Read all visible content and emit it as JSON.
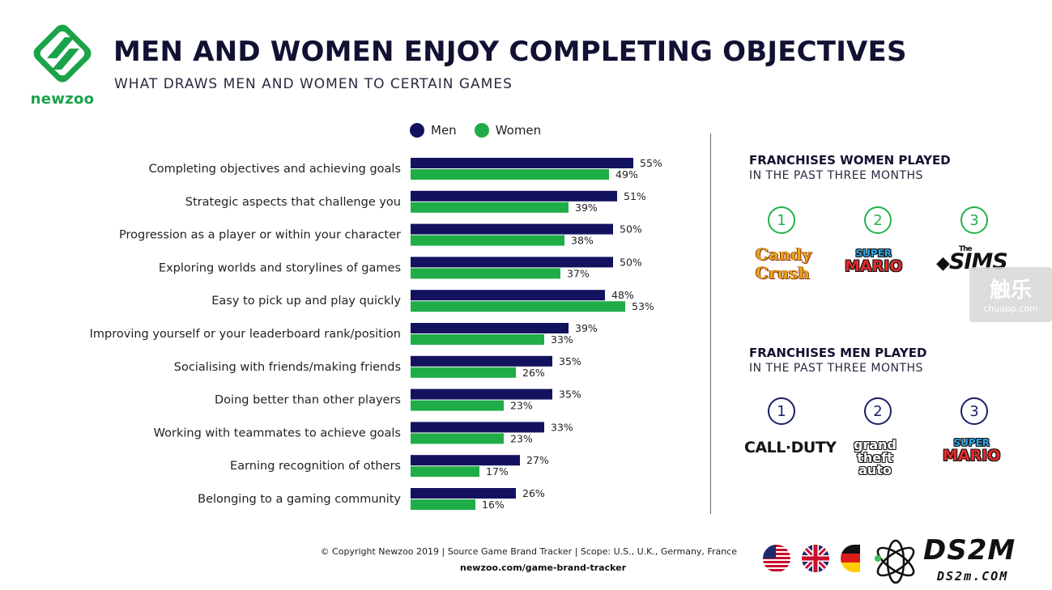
{
  "header": {
    "logo_text": "newzoo",
    "title": "MEN AND WOMEN ENJOY COMPLETING OBJECTIVES",
    "subtitle": "WHAT DRAWS MEN AND WOMEN TO CERTAIN GAMES"
  },
  "colors": {
    "men": "#12125e",
    "women": "#1fad48"
  },
  "chart_data": {
    "type": "bar",
    "orientation": "horizontal",
    "legend_placement": "top",
    "grid": false,
    "xlim": [
      0,
      60
    ],
    "categories": [
      "Completing objectives and achieving goals",
      "Strategic aspects that challenge you",
      "Progression as a player or within your character",
      "Exploring worlds and storylines of games",
      "Easy to pick up and play quickly",
      "Improving yourself or your leaderboard rank/position",
      "Socialising with friends/making friends",
      "Doing better than other players",
      "Working with teammates to achieve goals",
      "Earning recognition of others",
      "Belonging to a gaming community"
    ],
    "series": [
      {
        "name": "Men",
        "values": [
          55,
          51,
          50,
          50,
          48,
          39,
          35,
          35,
          33,
          27,
          26
        ]
      },
      {
        "name": "Women",
        "values": [
          49,
          39,
          38,
          37,
          53,
          33,
          26,
          23,
          23,
          17,
          16
        ]
      }
    ],
    "value_suffix": "%"
  },
  "franchises": {
    "women": {
      "heading": "FRANCHISES WOMEN PLAYED",
      "subheading": "IN THE PAST THREE MONTHS",
      "ranks": [
        "1",
        "2",
        "3"
      ],
      "candy_line1": "Candy",
      "candy_line2": "Crush",
      "mario_super": "SUPER",
      "mario_name": "MARIO",
      "sims_the": "The",
      "sims_name": "SIMS"
    },
    "men": {
      "heading": "FRANCHISES MEN PLAYED",
      "subheading": "IN THE PAST THREE MONTHS",
      "ranks": [
        "1",
        "2",
        "3"
      ],
      "cod": "CALL·DUTY",
      "gta_line1": "grand",
      "gta_line2": "theft",
      "gta_line3": "auto",
      "mario_super": "SUPER",
      "mario_name": "MARIO"
    }
  },
  "watermark": {
    "big": "触乐",
    "small": "chuapp.com"
  },
  "footer": {
    "copyright": "© Copyright Newzoo 2019 | Source Game Brand Tracker | Scope: U.S., U.K., Germany, France",
    "url": "newzoo.com/game-brand-tracker",
    "ds2m": "DS2M",
    "ds2m_sub": "DS2m.COM"
  }
}
